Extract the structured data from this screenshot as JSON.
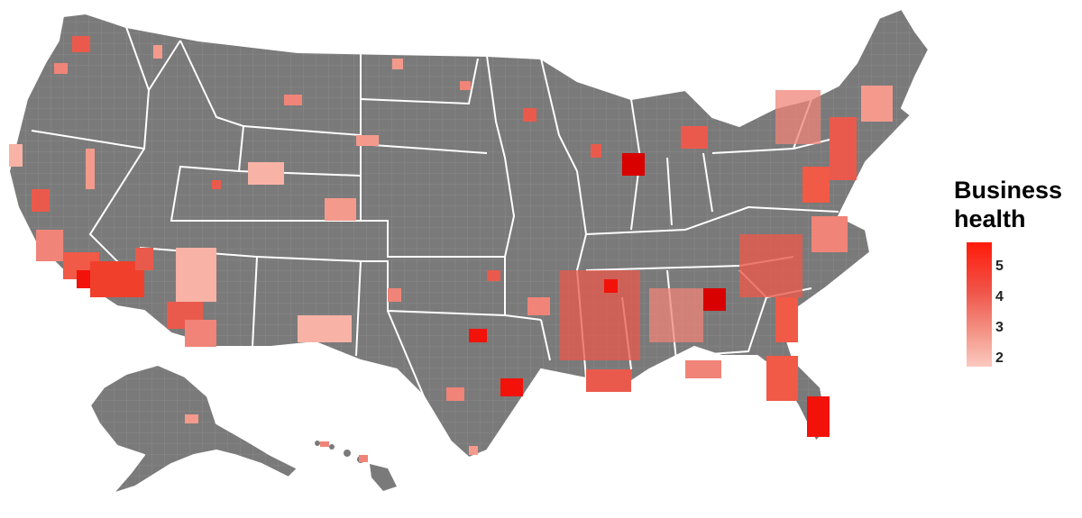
{
  "legend": {
    "title_line1": "Business",
    "title_line2": "health",
    "ticks": [
      "5",
      "4",
      "3",
      "2"
    ],
    "color_high": "#ff0000",
    "color_low": "#fbc9c0"
  },
  "map": {
    "base_color": "#7a7a7a",
    "border_color": "#ffffff",
    "regions": [
      "contiguous-us",
      "alaska",
      "hawaii"
    ]
  }
}
